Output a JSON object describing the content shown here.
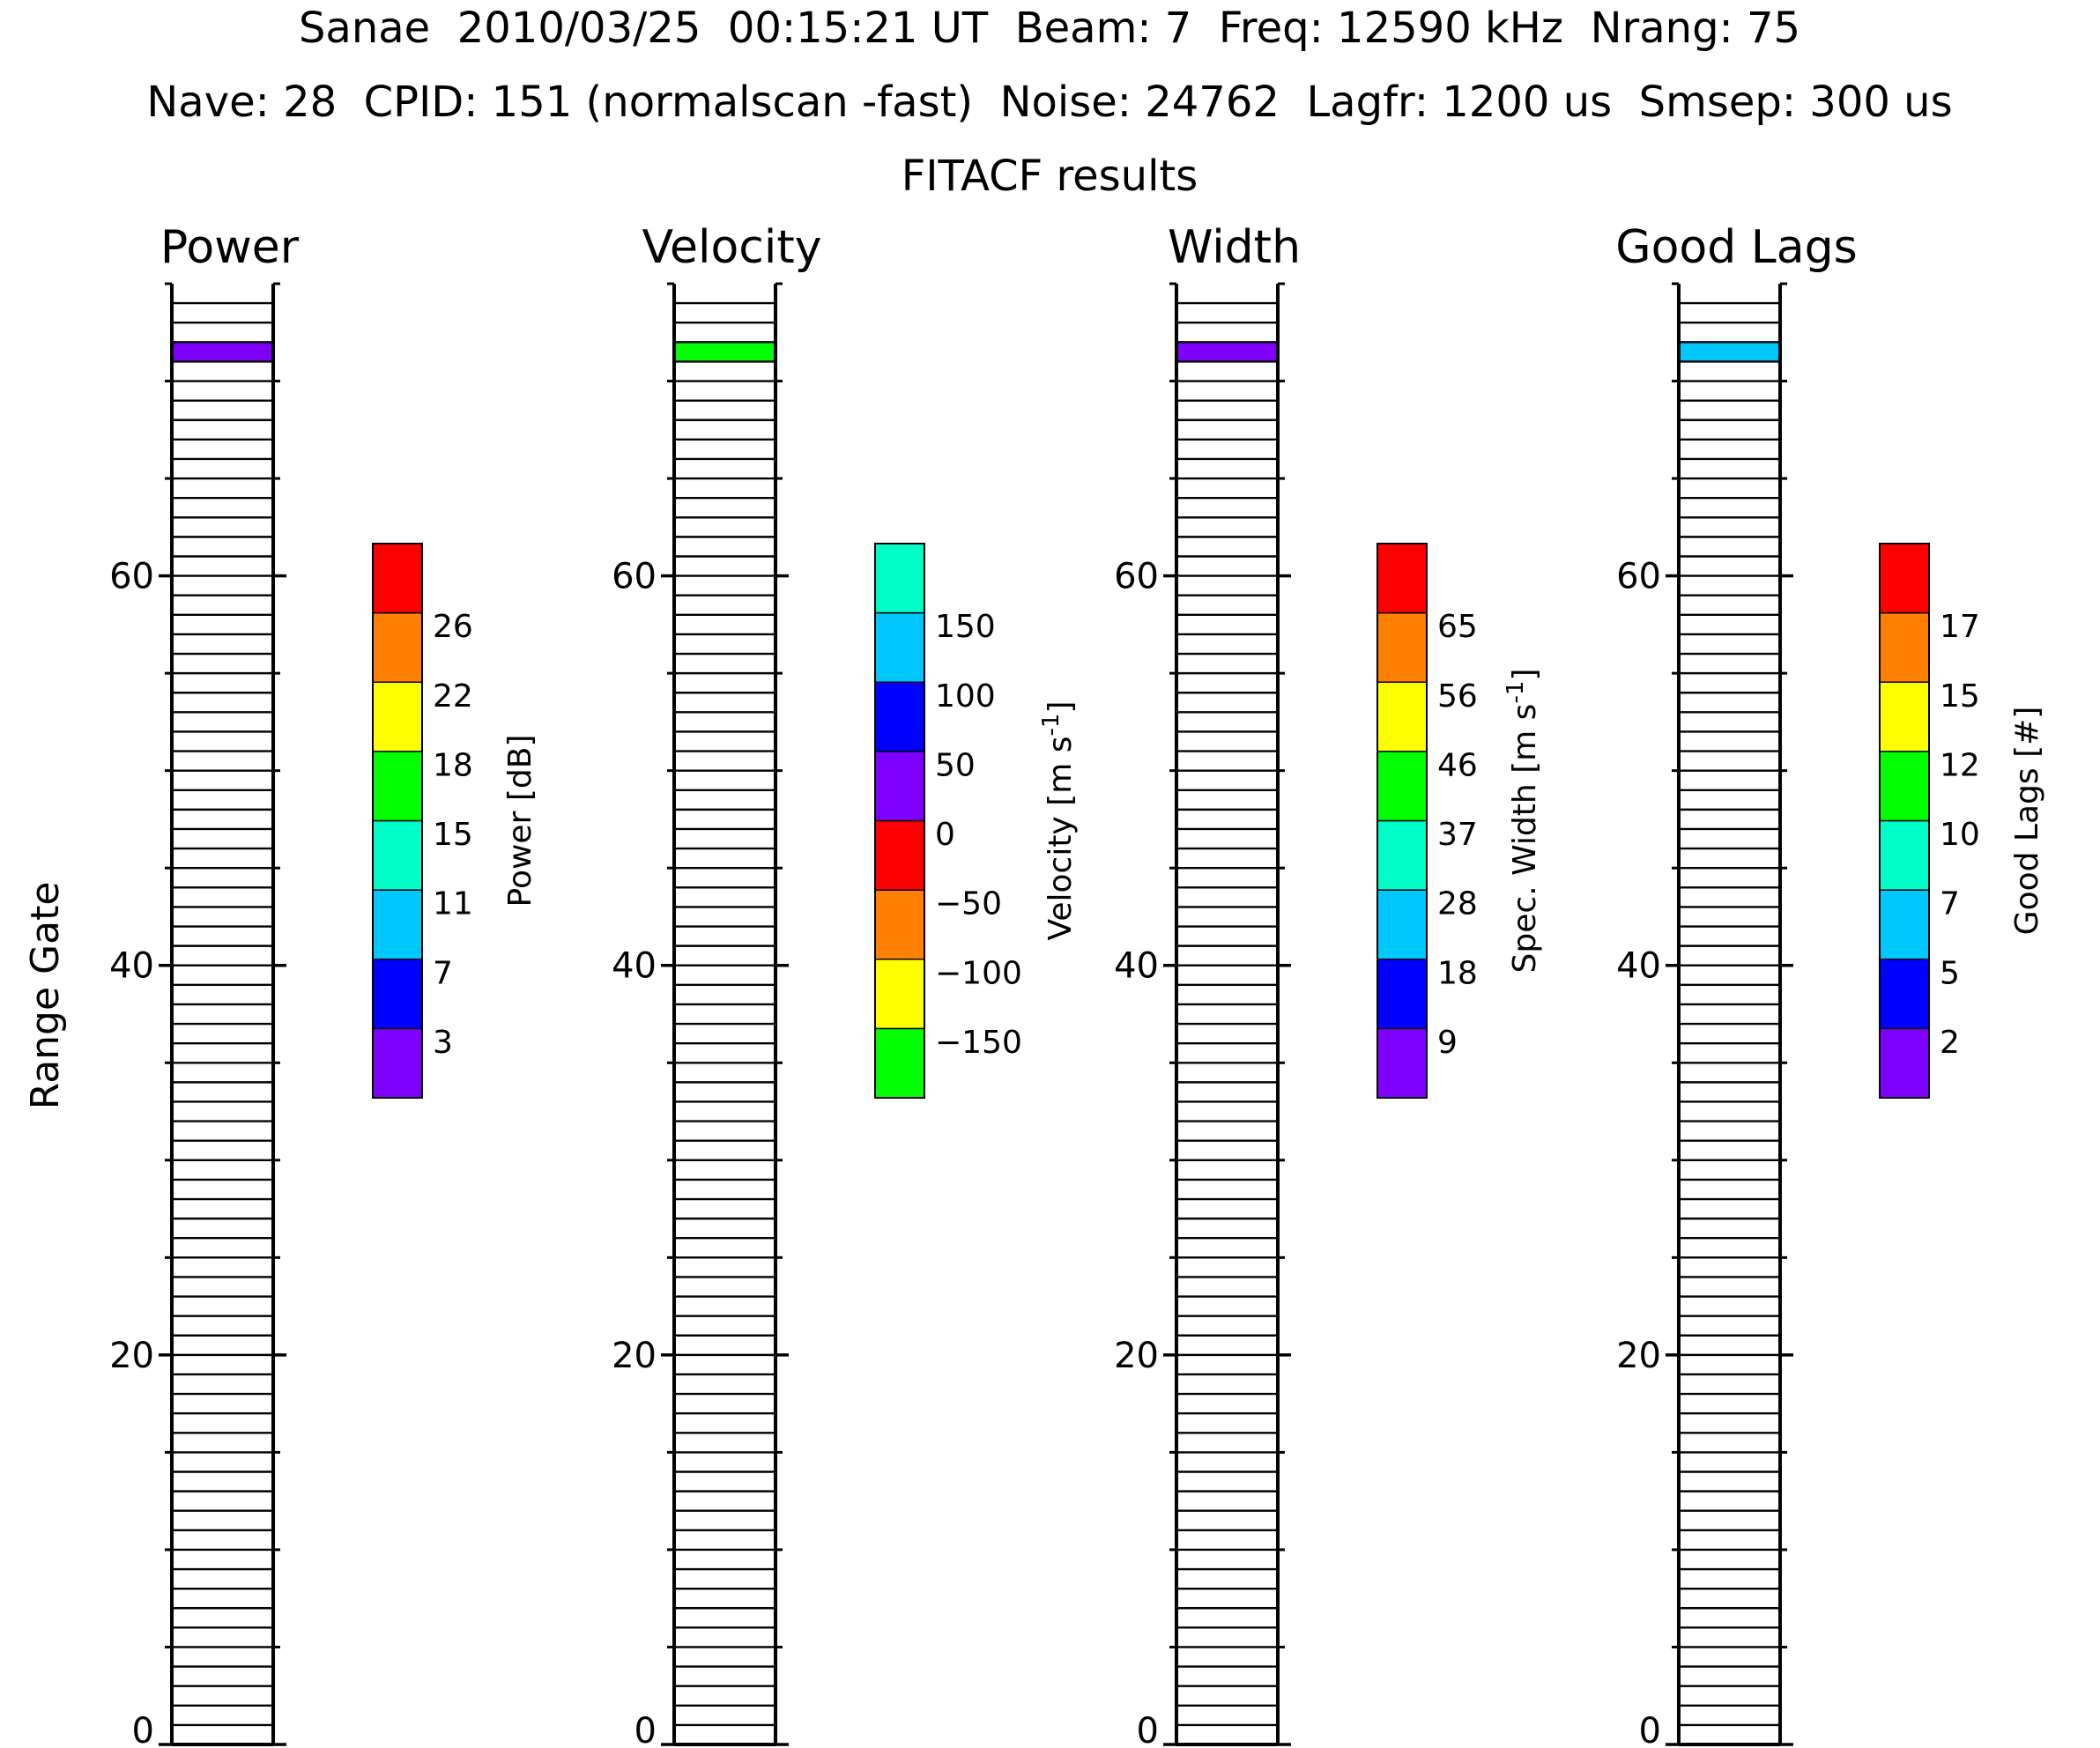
{
  "header": {
    "line1": "Sanae  2010/03/25  00:15:21 UT  Beam: 7  Freq: 12590 kHz  Nrang: 75",
    "line2": "Nave: 28  CPID: 151 (normalscan -fast)  Noise: 24762  Lagfr: 1200 us  Smsep: 300 us",
    "line3": "FITACF results"
  },
  "chart_data": {
    "type": "heatmap",
    "ylabel": "Range Gate",
    "ylim": [
      0,
      75
    ],
    "yticks": [
      "0",
      "20",
      "40",
      "60"
    ],
    "yticks_values": [
      0,
      20,
      40,
      60
    ],
    "gates": 75,
    "filled_gate": 71,
    "panels": [
      {
        "title": "Power",
        "cell_color": "#8000ff",
        "colorbar": {
          "label": "Power [dB]",
          "colors": [
            "#8000ff",
            "#0000ff",
            "#00c8ff",
            "#00ffc8",
            "#00ff00",
            "#ffff00",
            "#ff8000",
            "#ff0000"
          ],
          "ticks": [
            "3",
            "7",
            "11",
            "15",
            "18",
            "22",
            "26"
          ]
        }
      },
      {
        "title": "Velocity",
        "cell_color": "#00ff00",
        "colorbar": {
          "label": "Velocity [m s",
          "label_sup": "-1",
          "label_end": "]",
          "colors": [
            "#00ff00",
            "#ffff00",
            "#ff8000",
            "#ff0000",
            "#8000ff",
            "#0000ff",
            "#00c8ff",
            "#00ffc8"
          ],
          "ticks": [
            "-150",
            "-100",
            "-50",
            "0",
            "50",
            "100",
            "150"
          ]
        }
      },
      {
        "title": "Width",
        "cell_color": "#8000ff",
        "colorbar": {
          "label": "Spec. Width [m s",
          "label_sup": "-1",
          "label_end": "]",
          "colors": [
            "#8000ff",
            "#0000ff",
            "#00c8ff",
            "#00ffc8",
            "#00ff00",
            "#ffff00",
            "#ff8000",
            "#ff0000"
          ],
          "ticks": [
            "9",
            "18",
            "28",
            "37",
            "46",
            "56",
            "65"
          ]
        }
      },
      {
        "title": "Good Lags",
        "cell_color": "#00c8ff",
        "colorbar": {
          "label": "Good Lags [#]",
          "colors": [
            "#8000ff",
            "#0000ff",
            "#00c8ff",
            "#00ffc8",
            "#00ff00",
            "#ffff00",
            "#ff8000",
            "#ff0000"
          ],
          "ticks": [
            "2",
            "5",
            "7",
            "10",
            "12",
            "15",
            "17"
          ]
        }
      }
    ]
  }
}
